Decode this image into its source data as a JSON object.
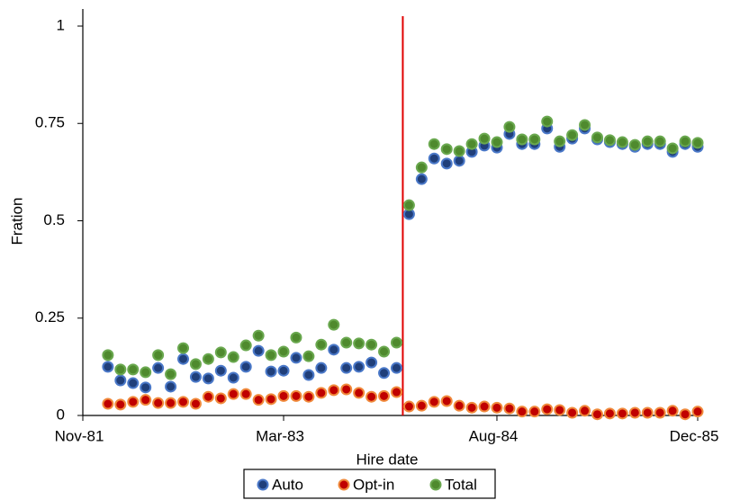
{
  "chart_data": {
    "type": "scatter",
    "xlabel": "Hire date",
    "ylabel": "Fration",
    "categories": [
      "Nov-81",
      null,
      null,
      null,
      null,
      null,
      null,
      null,
      null,
      null,
      null,
      null,
      null,
      null,
      null,
      null,
      "Mar-83",
      null,
      null,
      null,
      null,
      null,
      null,
      null,
      null,
      null,
      null,
      null,
      null,
      null,
      null,
      null,
      null,
      "Aug-84",
      null,
      null,
      null,
      null,
      null,
      null,
      null,
      null,
      null,
      null,
      null,
      null,
      null,
      null,
      null,
      "Dec-85"
    ],
    "ylim": [
      0,
      1
    ],
    "yticks": [
      0,
      0.25,
      0.5,
      0.75,
      1
    ],
    "grid": false,
    "vline": {
      "x": 25.5,
      "color": "#e00000"
    },
    "legend": "bottom",
    "series": [
      {
        "name": "Auto",
        "color": "#203f7a",
        "edge": "#4a78c8",
        "values": [
          null,
          null,
          0.125,
          0.09,
          0.083,
          0.072,
          0.122,
          0.074,
          0.145,
          0.099,
          0.095,
          0.115,
          0.097,
          0.125,
          0.166,
          0.113,
          0.115,
          0.148,
          0.104,
          0.122,
          0.169,
          0.122,
          0.125,
          0.136,
          0.109,
          0.122,
          0.517,
          0.607,
          0.66,
          0.647,
          0.654,
          0.677,
          0.693,
          0.688,
          0.723,
          0.697,
          0.697,
          0.737,
          0.69,
          0.711,
          0.737,
          0.709,
          0.702,
          0.697,
          0.69,
          0.697,
          0.697,
          0.677,
          0.697,
          0.69
        ]
      },
      {
        "name": "Opt-in",
        "color": "#c00000",
        "edge": "#f08a3c",
        "values": [
          null,
          null,
          0.03,
          0.028,
          0.035,
          0.04,
          0.032,
          0.032,
          0.035,
          0.03,
          0.048,
          0.044,
          0.055,
          0.055,
          0.04,
          0.042,
          0.05,
          0.05,
          0.048,
          0.058,
          0.065,
          0.067,
          0.058,
          0.048,
          0.05,
          0.06,
          0.023,
          0.025,
          0.035,
          0.037,
          0.025,
          0.02,
          0.023,
          0.02,
          0.018,
          0.01,
          0.01,
          0.016,
          0.014,
          0.007,
          0.012,
          0.003,
          0.005,
          0.005,
          0.007,
          0.007,
          0.007,
          0.012,
          0.003,
          0.01
        ]
      },
      {
        "name": "Total",
        "color": "#4f8a2e",
        "edge": "#6aa84f",
        "values": [
          null,
          null,
          0.155,
          0.118,
          0.118,
          0.111,
          0.155,
          0.106,
          0.173,
          0.132,
          0.145,
          0.162,
          0.15,
          0.18,
          0.205,
          0.155,
          0.164,
          0.2,
          0.152,
          0.182,
          0.233,
          0.187,
          0.185,
          0.182,
          0.164,
          0.187,
          0.54,
          0.637,
          0.697,
          0.684,
          0.679,
          0.697,
          0.711,
          0.702,
          0.741,
          0.709,
          0.709,
          0.755,
          0.704,
          0.72,
          0.746,
          0.714,
          0.707,
          0.702,
          0.695,
          0.704,
          0.704,
          0.686,
          0.704,
          0.7
        ]
      }
    ]
  }
}
